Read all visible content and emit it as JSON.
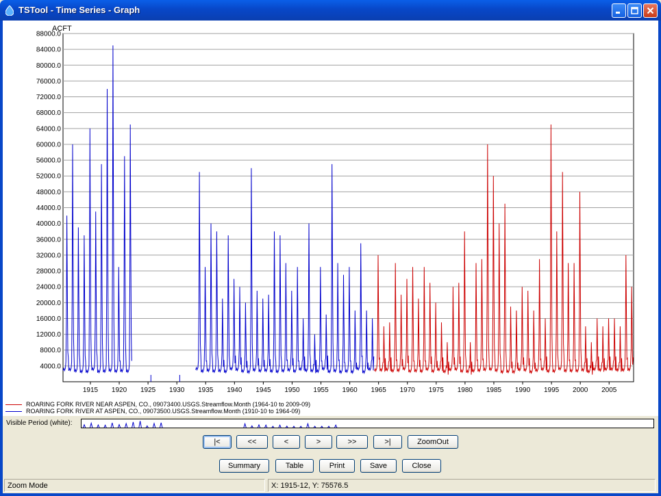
{
  "window": {
    "title": "TSTool - Time Series - Graph"
  },
  "chart_data": {
    "type": "line",
    "ylabel": "ACFT",
    "ylim": [
      0,
      88000
    ],
    "xlim": [
      1910.75,
      2009.75
    ],
    "y_ticks": [
      "4000.0",
      "8000.0",
      "12000.0",
      "16000.0",
      "20000.0",
      "24000.0",
      "28000.0",
      "32000.0",
      "36000.0",
      "40000.0",
      "44000.0",
      "48000.0",
      "52000.0",
      "56000.0",
      "60000.0",
      "64000.0",
      "68000.0",
      "72000.0",
      "76000.0",
      "80000.0",
      "84000.0",
      "88000.0"
    ],
    "x_ticks": [
      "1915",
      "1920",
      "1925",
      "1930",
      "1935",
      "1940",
      "1945",
      "1950",
      "1955",
      "1960",
      "1965",
      "1970",
      "1975",
      "1980",
      "1985",
      "1990",
      "1995",
      "2000",
      "2005"
    ],
    "grid": true,
    "series": [
      {
        "name": "ROARING FORK RIVER AT ASPEN, CO., 09073500.USGS.Streamflow.Month (1910-10 to 1964-09)",
        "color": "#0000CC",
        "start": "1910-10",
        "end": "1964-09",
        "annual_peaks": [
          [
            1911,
            42000
          ],
          [
            1912,
            60000
          ],
          [
            1913,
            39000
          ],
          [
            1914,
            37000
          ],
          [
            1915,
            64000
          ],
          [
            1916,
            43000
          ],
          [
            1917,
            55000
          ],
          [
            1918,
            74000
          ],
          [
            1919,
            85000
          ],
          [
            1920,
            29000
          ],
          [
            1921,
            57000
          ],
          [
            1922,
            65000
          ],
          [
            1934,
            53000
          ],
          [
            1935,
            29000
          ],
          [
            1936,
            40000
          ],
          [
            1937,
            38000
          ],
          [
            1938,
            21000
          ],
          [
            1939,
            37000
          ],
          [
            1940,
            26000
          ],
          [
            1941,
            24000
          ],
          [
            1942,
            20000
          ],
          [
            1943,
            54000
          ],
          [
            1944,
            23000
          ],
          [
            1945,
            21000
          ],
          [
            1946,
            22000
          ],
          [
            1947,
            38000
          ],
          [
            1948,
            37000
          ],
          [
            1949,
            30000
          ],
          [
            1950,
            23000
          ],
          [
            1951,
            29000
          ],
          [
            1952,
            16000
          ],
          [
            1953,
            40000
          ],
          [
            1954,
            12000
          ],
          [
            1955,
            29000
          ],
          [
            1956,
            17000
          ],
          [
            1957,
            55000
          ],
          [
            1958,
            30000
          ],
          [
            1959,
            27000
          ],
          [
            1960,
            29000
          ],
          [
            1961,
            18000
          ],
          [
            1962,
            35000
          ],
          [
            1963,
            18000
          ],
          [
            1964,
            16000
          ]
        ]
      },
      {
        "name": "ROARING FORK RIVER NEAR ASPEN, CO., 09073400.USGS.Streamflow.Month (1964-10 to 2009-09)",
        "color": "#CC0000",
        "start": "1964-10",
        "end": "2009-09",
        "annual_peaks": [
          [
            1965,
            32000
          ],
          [
            1966,
            14000
          ],
          [
            1967,
            15000
          ],
          [
            1968,
            30000
          ],
          [
            1969,
            22000
          ],
          [
            1970,
            26000
          ],
          [
            1971,
            29000
          ],
          [
            1972,
            21000
          ],
          [
            1973,
            29000
          ],
          [
            1974,
            25000
          ],
          [
            1975,
            20000
          ],
          [
            1976,
            15000
          ],
          [
            1977,
            10000
          ],
          [
            1978,
            24000
          ],
          [
            1979,
            25000
          ],
          [
            1980,
            38000
          ],
          [
            1981,
            10000
          ],
          [
            1982,
            30000
          ],
          [
            1983,
            31000
          ],
          [
            1984,
            60000
          ],
          [
            1985,
            52000
          ],
          [
            1986,
            40000
          ],
          [
            1987,
            45000
          ],
          [
            1988,
            19000
          ],
          [
            1989,
            18000
          ],
          [
            1990,
            24000
          ],
          [
            1991,
            23000
          ],
          [
            1992,
            18000
          ],
          [
            1993,
            31000
          ],
          [
            1994,
            16000
          ],
          [
            1995,
            65000
          ],
          [
            1996,
            38000
          ],
          [
            1997,
            53000
          ],
          [
            1998,
            30000
          ],
          [
            1999,
            30000
          ],
          [
            2000,
            48000
          ],
          [
            2001,
            14000
          ],
          [
            2002,
            10000
          ],
          [
            2003,
            16000
          ],
          [
            2004,
            14000
          ],
          [
            2005,
            16000
          ],
          [
            2006,
            16000
          ],
          [
            2007,
            14000
          ],
          [
            2008,
            32000
          ],
          [
            2009,
            24000
          ]
        ]
      }
    ]
  },
  "visible_period": {
    "label": "Visible Period (white):"
  },
  "nav_buttons": [
    "|<",
    "<<",
    "<",
    ">",
    ">>",
    ">|",
    "ZoomOut"
  ],
  "action_buttons": [
    "Summary",
    "Table",
    "Print",
    "Save",
    "Close"
  ],
  "status": {
    "mode": "Zoom Mode",
    "coords": "X:  1915-12,  Y:  75576.5"
  }
}
